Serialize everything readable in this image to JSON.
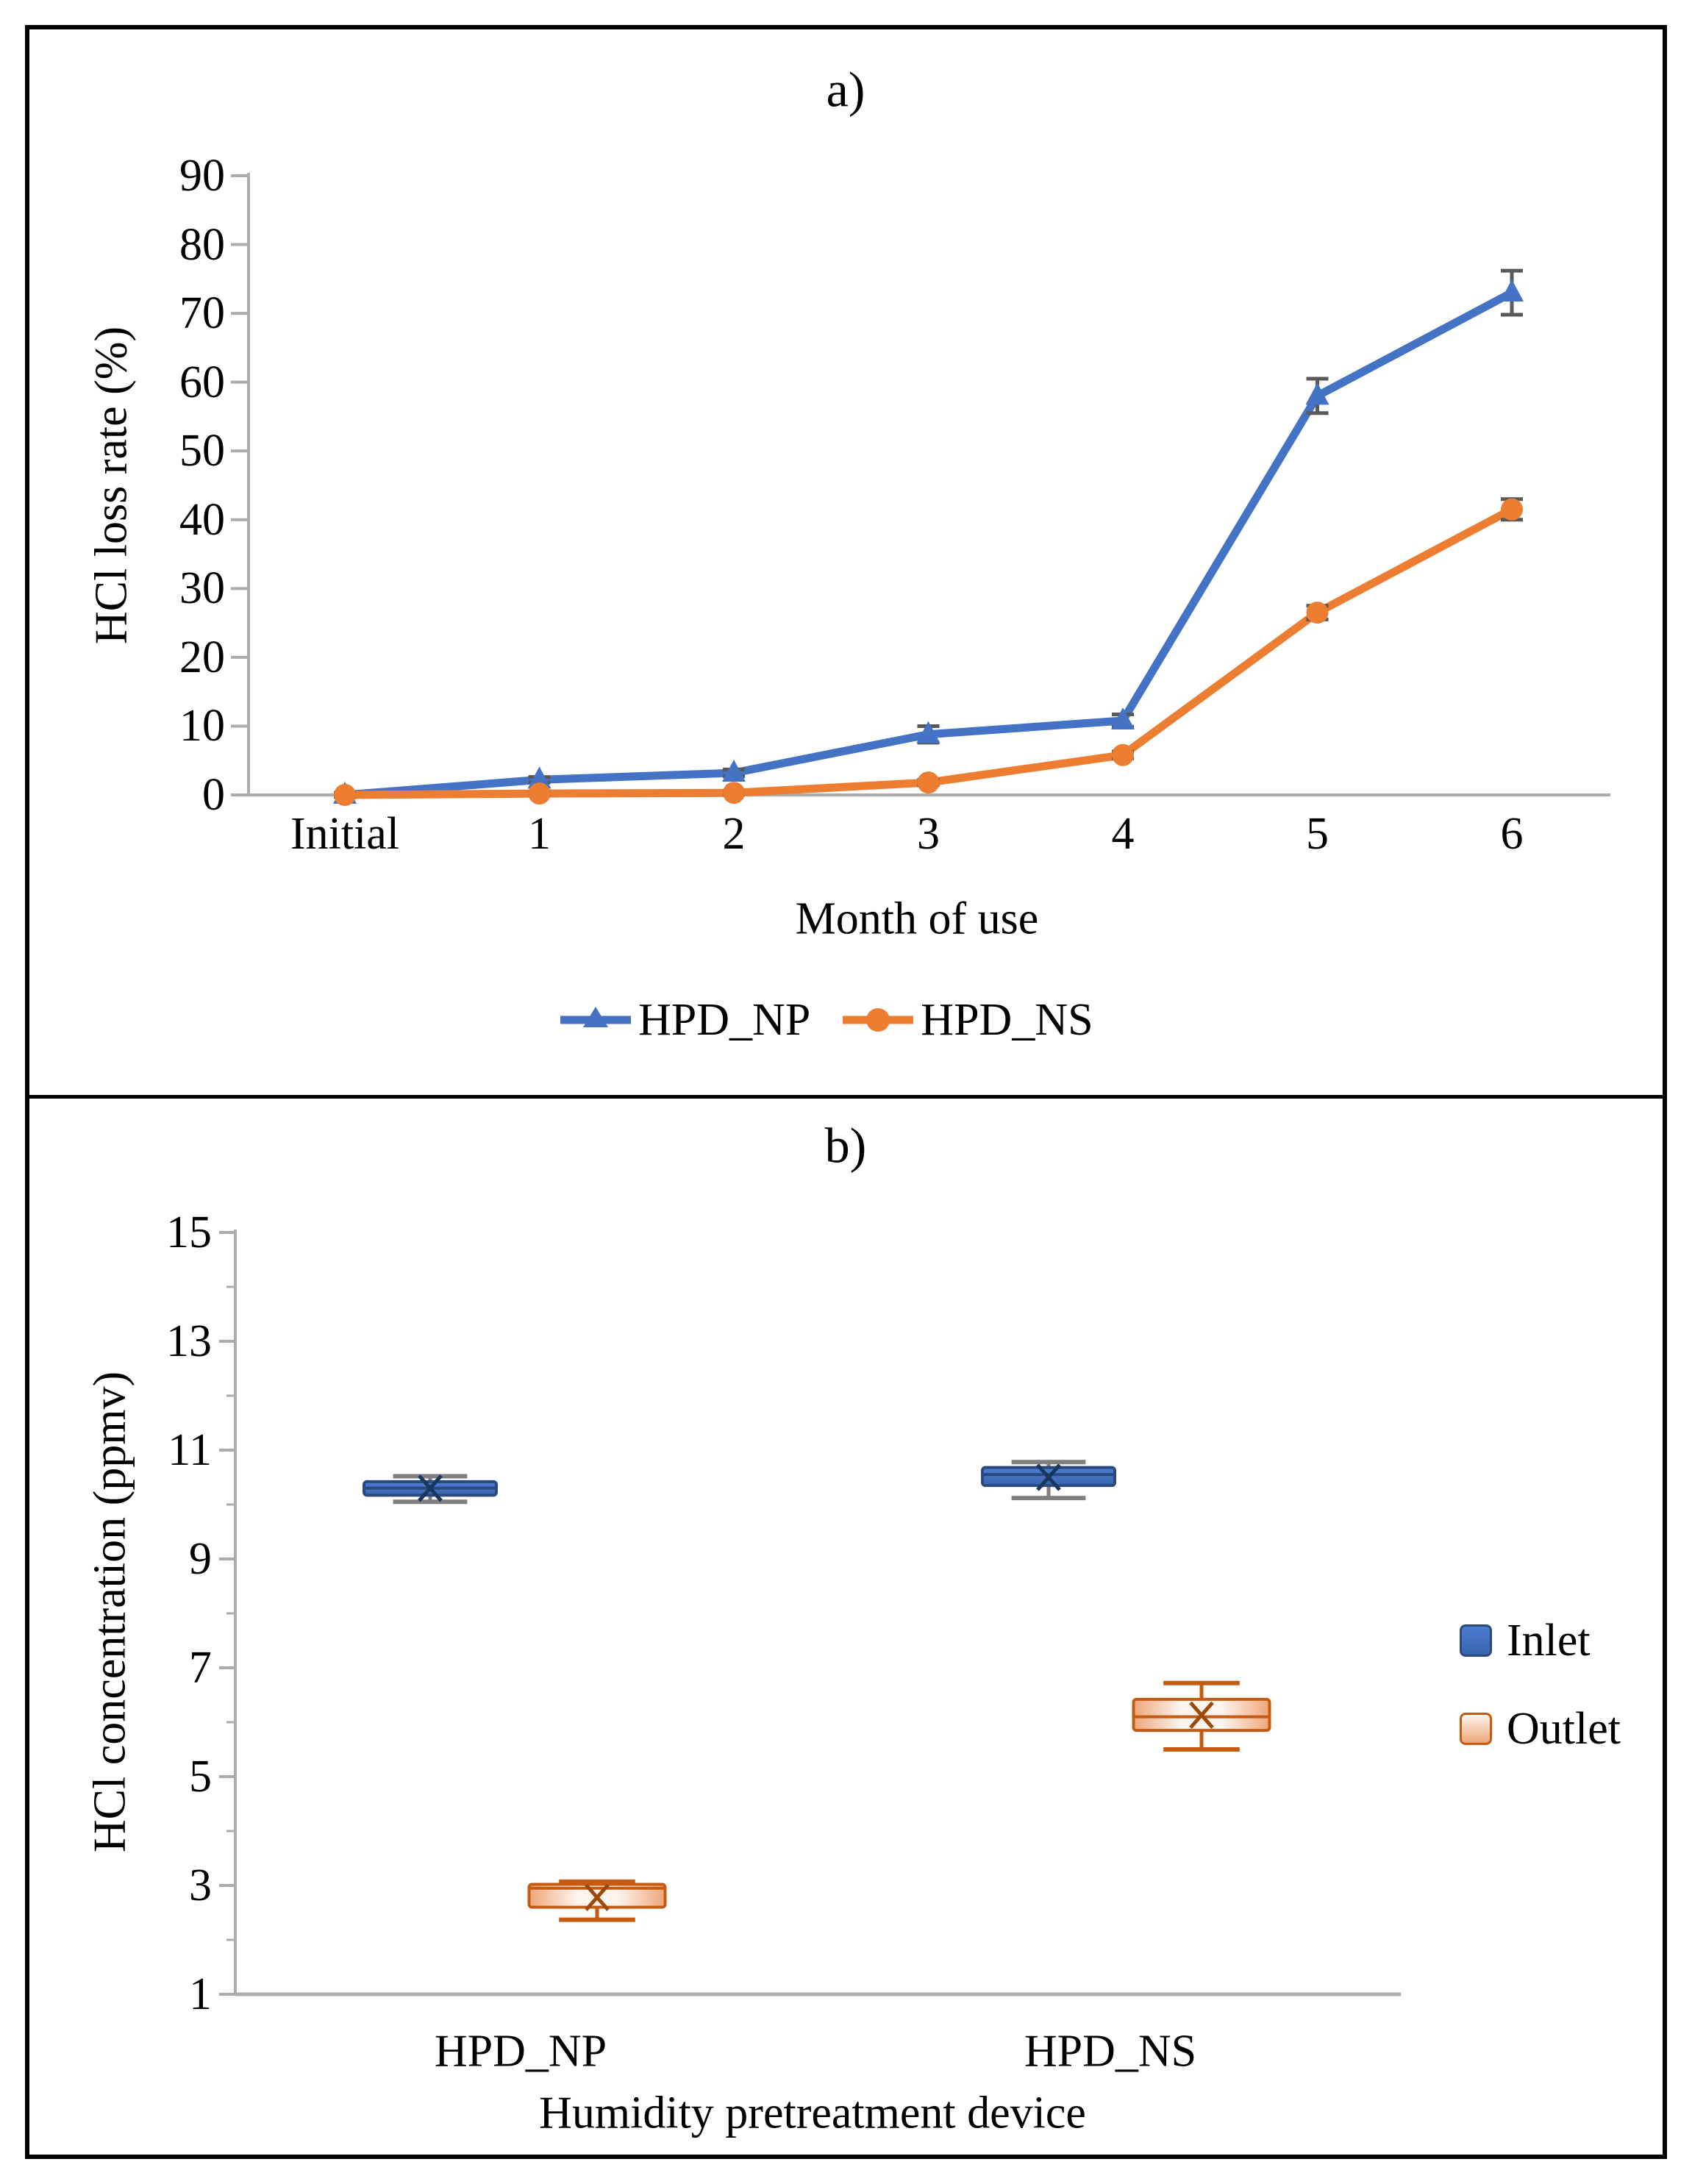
{
  "figure": {
    "panel_a_label": "a)",
    "panel_b_label": "b)"
  },
  "chart_data": [
    {
      "id": "hcl-loss-rate",
      "type": "line",
      "title": "a)",
      "xlabel": "Month of use",
      "ylabel": "HCl loss rate (%)",
      "categories": [
        "Initial",
        "1",
        "2",
        "3",
        "4",
        "5",
        "6"
      ],
      "ylim": [
        0,
        90
      ],
      "yticks": [
        0,
        10,
        20,
        30,
        40,
        50,
        60,
        70,
        80,
        90
      ],
      "grid": false,
      "legend_position": "bottom",
      "axis_color": "#ACACAC",
      "error_bar_color": "#595959",
      "series": [
        {
          "name": "HPD_NP",
          "color": "#4472C4",
          "marker": "triangle",
          "values": [
            0,
            2.2,
            3.2,
            8.8,
            10.8,
            58,
            73
          ],
          "errors": [
            0.3,
            0.4,
            0.5,
            1.2,
            0.9,
            2.5,
            3.2
          ]
        },
        {
          "name": "HPD_NS",
          "color": "#ED7D31",
          "marker": "circle",
          "values": [
            0,
            0.2,
            0.3,
            1.8,
            5.8,
            26.5,
            41.5
          ],
          "errors": [
            0.2,
            0.2,
            0.2,
            0.4,
            0.5,
            1.0,
            1.5
          ]
        }
      ]
    },
    {
      "id": "hcl-concentration",
      "type": "box",
      "title": "b)",
      "xlabel": "Humidity  pretreatment device",
      "ylabel": "HCl concentration (ppmv)",
      "categories": [
        "HPD_NP",
        "HPD_NS"
      ],
      "ylim": [
        1,
        15
      ],
      "yticks": [
        1,
        3,
        5,
        7,
        9,
        11,
        13,
        15
      ],
      "minor_yticks": [
        2,
        4,
        6,
        8,
        10,
        12,
        14
      ],
      "grid": false,
      "legend": [
        "Inlet",
        "Outlet"
      ],
      "legend_position": "right",
      "axis_color": "#ACACAC",
      "groups": [
        {
          "category": "HPD_NP",
          "series": "Inlet",
          "whisker_low": 10.05,
          "q1": 10.17,
          "median": 10.3,
          "q3": 10.42,
          "whisker_high": 10.52,
          "mean": 10.3
        },
        {
          "category": "HPD_NP",
          "series": "Outlet",
          "whisker_low": 2.37,
          "q1": 2.6,
          "median": 2.95,
          "q3": 3.02,
          "whisker_high": 3.07,
          "mean": 2.78
        },
        {
          "category": "HPD_NS",
          "series": "Inlet",
          "whisker_low": 10.12,
          "q1": 10.35,
          "median": 10.55,
          "q3": 10.68,
          "whisker_high": 10.78,
          "mean": 10.5
        },
        {
          "category": "HPD_NS",
          "series": "Outlet",
          "whisker_low": 5.5,
          "q1": 5.85,
          "median": 6.1,
          "q3": 6.42,
          "whisker_high": 6.72,
          "mean": 6.13
        }
      ],
      "colors": {
        "inlet_fill_top": "#4C7CD0",
        "inlet_fill_bottom": "#3A66AE",
        "inlet_border": "#2A4A7F",
        "inlet_detail": "#17375E",
        "inlet_whisker": "#7F7F7F",
        "outlet_border": "#C55A11",
        "outlet_fill_edge": "#EFA678",
        "outlet_fill_center": "#FDF4EE",
        "outlet_detail": "#9C4A08"
      }
    }
  ]
}
